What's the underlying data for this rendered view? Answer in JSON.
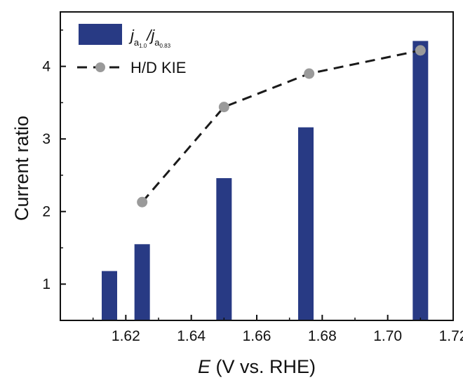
{
  "chart_data": {
    "type": "bar",
    "xlabel": {
      "var": "E",
      "rest": " (V vs. RHE)"
    },
    "ylabel": "Current ratio",
    "xlim": [
      1.6,
      1.72
    ],
    "ylim": [
      0.5,
      4.75
    ],
    "x_ticks": [
      "1.62",
      "1.64",
      "1.66",
      "1.68",
      "1.70",
      "1.72"
    ],
    "y_ticks": [
      "1",
      "2",
      "3",
      "4"
    ],
    "series": [
      {
        "kind": "bar",
        "legend": {
          "j": "j",
          "sub1": "a",
          "subsub1": "1.0",
          "slash": "/",
          "sub2": "a",
          "subsub2": "0.83"
        },
        "color": "#283a84",
        "x": [
          1.615,
          1.625,
          1.65,
          1.675,
          1.71
        ],
        "values": [
          1.18,
          1.55,
          2.46,
          3.16,
          4.35
        ]
      },
      {
        "kind": "line",
        "name": "H/D KIE",
        "line_color": "#1a1a1a",
        "marker_color": "#9a9a9a",
        "x": [
          1.625,
          1.65,
          1.676,
          1.71
        ],
        "values": [
          2.13,
          3.44,
          3.9,
          4.22
        ]
      }
    ],
    "legend_position": "top-left"
  }
}
